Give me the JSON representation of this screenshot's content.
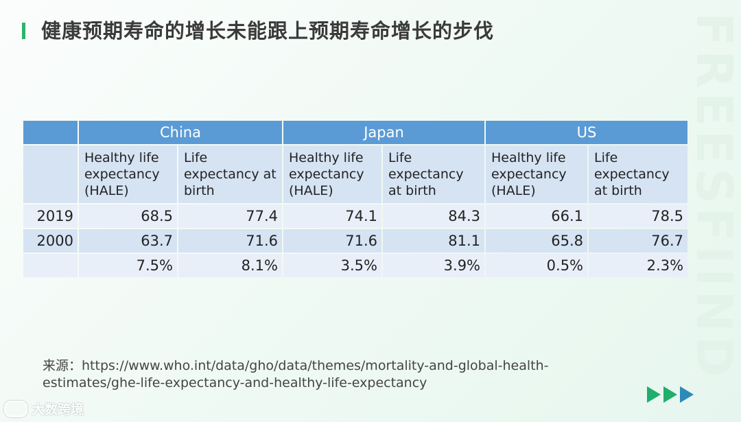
{
  "title": "健康预期寿命的增长未能跟上预期寿命增长的步伐",
  "watermark": "FREESFIIND",
  "table": {
    "groups": [
      "China",
      "Japan",
      "US"
    ],
    "subheaders": [
      "Healthy life expectancy (HALE)",
      "Life expectancy at birth",
      "Healthy life expectancy (HALE)",
      "Life expectancy at birth",
      "Healthy life expectancy (HALE)",
      "Life expectancy at birth"
    ],
    "rows": [
      {
        "label": "2019",
        "values": [
          "68.5",
          "77.4",
          "74.1",
          "84.3",
          "66.1",
          "78.5"
        ]
      },
      {
        "label": "2000",
        "values": [
          "63.7",
          "71.6",
          "71.6",
          "81.1",
          "65.8",
          "76.7"
        ]
      },
      {
        "label": "",
        "values": [
          "7.5%",
          "8.1%",
          "3.5%",
          "3.9%",
          "0.5%",
          "2.3%"
        ]
      }
    ]
  },
  "source": "来源：https://www.who.int/data/gho/data/themes/mortality-and-global-health-estimates/ghe-life-expectancy-and-healthy-life-expectancy",
  "logo_text": "大数跨境",
  "colors": {
    "accent": "#2db36b",
    "header": "#5b9bd5",
    "subheader": "#d5e3f3",
    "arrow_green": "#1fae6c",
    "arrow_blue": "#2b8ab8"
  }
}
